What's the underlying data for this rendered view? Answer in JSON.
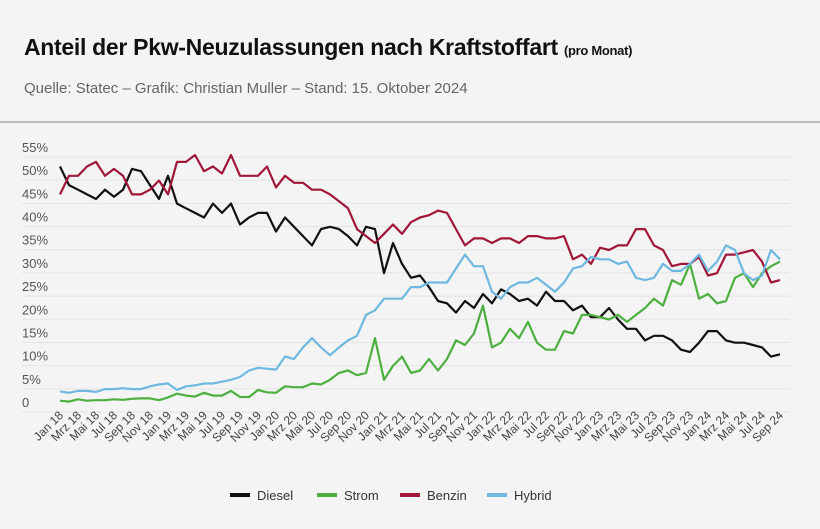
{
  "header": {
    "title": "Anteil der Pkw-Neuzulassungen nach Kraftstoffart",
    "title_suffix": "(pro Monat)",
    "source": "Quelle: Statec – Grafik: Christian Muller – Stand: 15. Oktober 2024"
  },
  "chart_data": {
    "type": "line",
    "title": "Anteil der Pkw-Neuzulassungen nach Kraftstoffart (pro Monat)",
    "ylim": [
      0,
      55
    ],
    "y_ticks": [
      "0",
      "5%",
      "10%",
      "15%",
      "20%",
      "25%",
      "30%",
      "35%",
      "40%",
      "45%",
      "50%",
      "55%"
    ],
    "x_tick_labels": [
      "Jan 18",
      "Mrz 18",
      "Mai 18",
      "Jul 18",
      "Sep 18",
      "Nov 18",
      "Jan 19",
      "Mrz 19",
      "Mai 19",
      "Jul 19",
      "Sep 19",
      "Nov 19",
      "Jan 20",
      "Mrz 20",
      "Mai 20",
      "Jul 20",
      "Sep 20",
      "Nov 20",
      "Jan 21",
      "Mrz 21",
      "Mai 21",
      "Jul 21",
      "Sep 21",
      "Nov 21",
      "Jan 22",
      "Mrz 22",
      "Mai 22",
      "Jul 22",
      "Sep 22",
      "Nov 22",
      "Jan 23",
      "Mrz 23",
      "Mai 23",
      "Jul 23",
      "Sep 23",
      "Nov 23",
      "Jan 24",
      "Mrz 24",
      "Mai 24",
      "Jul 24",
      "Sep 24"
    ],
    "x_start": "Jan 18",
    "x_end": "Sep 24",
    "grid": true,
    "legend": "bottom",
    "series": [
      {
        "name": "Diesel",
        "color": "#111111",
        "values": [
          51,
          47,
          46,
          45,
          44,
          46,
          44.5,
          46,
          50.5,
          50,
          47,
          44,
          49,
          43,
          42,
          41,
          40,
          43,
          41,
          43,
          38.5,
          40,
          41,
          41,
          37,
          40,
          38,
          36,
          34,
          37.5,
          38,
          37.5,
          36,
          34,
          38,
          37.5,
          28,
          34.5,
          30,
          27,
          27.5,
          25,
          22,
          21.5,
          19.5,
          22,
          20.5,
          23.5,
          21.5,
          24.5,
          23.5,
          22,
          22.5,
          21,
          24,
          22,
          22,
          20,
          21,
          18.5,
          18.5,
          20.5,
          18,
          16,
          16,
          13.5,
          14.5,
          14.5,
          13.5,
          11.5,
          11,
          13,
          15.5,
          15.5,
          13.5,
          13,
          13,
          12.5,
          12,
          10,
          10.5
        ]
      },
      {
        "name": "Strom",
        "color": "#4caf3f",
        "values": [
          0.5,
          0.3,
          0.8,
          0.5,
          0.6,
          0.6,
          0.8,
          0.7,
          0.9,
          1.0,
          1.0,
          0.6,
          1.2,
          2.0,
          1.6,
          1.4,
          2.2,
          1.6,
          1.6,
          2.6,
          1.3,
          1.3,
          2.8,
          2.3,
          2.2,
          3.6,
          3.4,
          3.4,
          4.2,
          4.0,
          5.0,
          6.5,
          7.0,
          6.0,
          6.5,
          14.0,
          5.0,
          8.0,
          10.0,
          6.5,
          7.0,
          9.5,
          7.0,
          9.5,
          13.5,
          12.5,
          15.0,
          21.0,
          12.0,
          13.0,
          16.0,
          14.0,
          17.5,
          13.0,
          11.5,
          11.5,
          15.5,
          15.0,
          19.0,
          19.0,
          18.5,
          18.0,
          19.0,
          17.5,
          19.0,
          20.5,
          22.5,
          21.0,
          26.5,
          25.5,
          30.0,
          22.5,
          23.5,
          21.5,
          22.0,
          27.0,
          28.0,
          25.0,
          28.0,
          29.5,
          30.5
        ]
      },
      {
        "name": "Benzin",
        "color": "#a0173a",
        "values": [
          45,
          49,
          49,
          51,
          52,
          49,
          50.5,
          49,
          45,
          45,
          46,
          48,
          45,
          52,
          52,
          53.5,
          50,
          51,
          49.5,
          53.5,
          49,
          49,
          49,
          51,
          46.5,
          49,
          47.5,
          47.5,
          46,
          46,
          45,
          43.5,
          42,
          37.5,
          36,
          34.5,
          36.5,
          38.5,
          36.5,
          39,
          40,
          40.5,
          41.5,
          41,
          37.5,
          34,
          35.5,
          35.5,
          34.5,
          35.5,
          35.5,
          34.5,
          36,
          36,
          35.5,
          35.5,
          36,
          31,
          32,
          30,
          33.5,
          33,
          34,
          34,
          37.5,
          37.5,
          34,
          33,
          29.5,
          30,
          30,
          31.5,
          27.5,
          28,
          32,
          32,
          32.5,
          33,
          30.5,
          26,
          26.5
        ]
      },
      {
        "name": "Hybrid",
        "color": "#6fb8e0",
        "values": [
          2.5,
          2.2,
          2.6,
          2.6,
          2.4,
          3.0,
          3.0,
          3.2,
          3.0,
          3.0,
          3.6,
          4.0,
          4.2,
          2.8,
          3.6,
          3.8,
          4.2,
          4.2,
          4.6,
          5.0,
          5.6,
          7.0,
          7.6,
          7.4,
          7.2,
          10.0,
          9.5,
          12,
          14,
          12,
          10.3,
          12,
          13.5,
          14.5,
          19,
          20,
          22.5,
          22.5,
          22.5,
          25,
          25,
          26,
          26,
          26,
          29,
          32,
          29.5,
          29.5,
          24,
          22.5,
          25,
          26,
          26,
          27,
          25.5,
          24,
          26,
          29,
          29.5,
          31.5,
          31,
          31,
          30,
          30.5,
          27,
          26.5,
          27,
          30,
          28.5,
          28.5,
          30,
          32,
          28.5,
          30.5,
          34,
          33,
          28,
          26.5,
          27.5,
          33,
          31
        ]
      }
    ]
  }
}
